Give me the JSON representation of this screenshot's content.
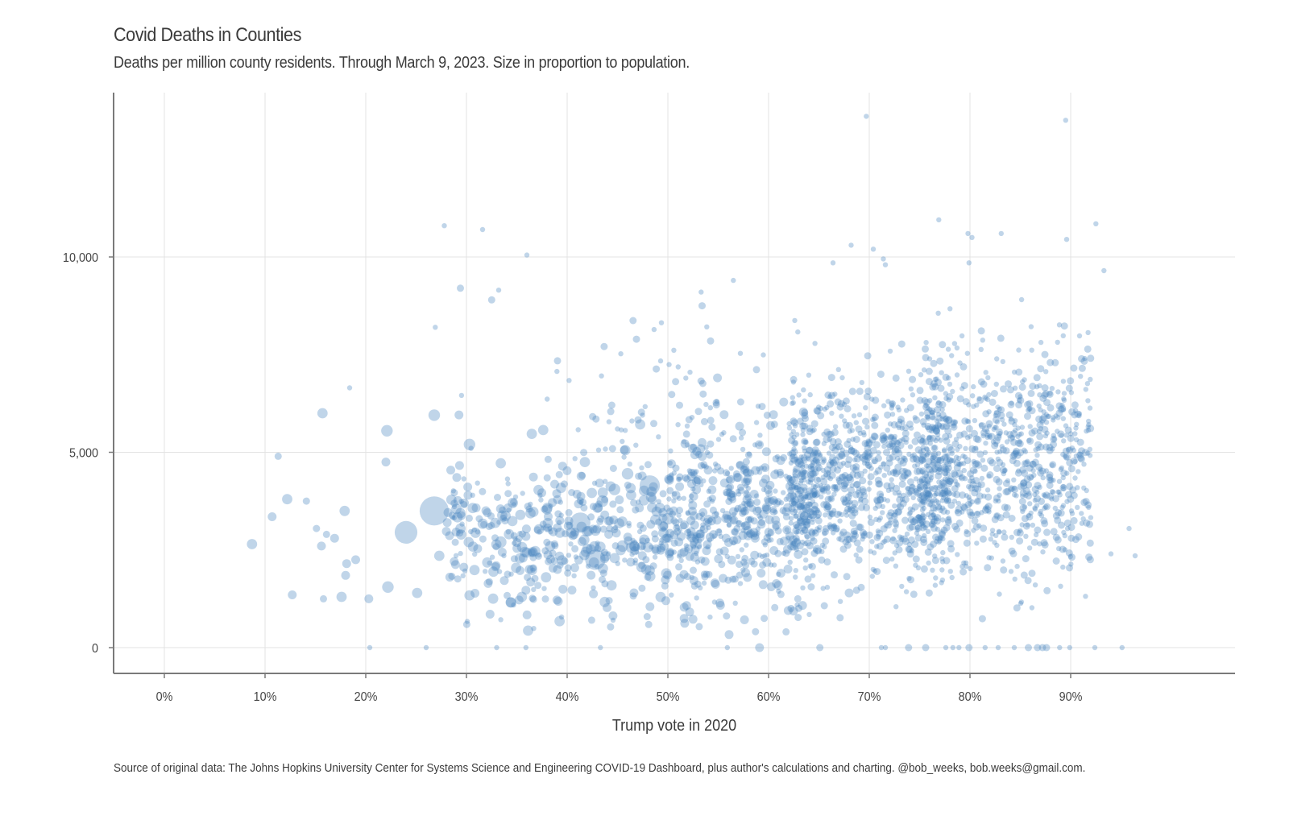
{
  "chart_data": {
    "type": "scatter",
    "title": "Covid Deaths in Counties",
    "subtitle": "Deaths per million county residents. Through March 9, 2023. Size in proportion to population.",
    "caption": "Source of original data: The Johns Hopkins University Center for Systems Science and Engineering COVID-19 Dashboard, plus author's calculations and charting. @bob_weeks, bob.weeks@gmail.com.",
    "xlabel": "Trump vote in 2020",
    "ylabel": "",
    "xlim": [
      -5,
      106
    ],
    "ylim": [
      -700,
      14200
    ],
    "x_ticks": [
      0,
      10,
      20,
      30,
      40,
      50,
      60,
      70,
      80,
      90
    ],
    "x_tick_labels": [
      "0%",
      "10%",
      "20%",
      "30%",
      "40%",
      "50%",
      "60%",
      "70%",
      "80%",
      "90%"
    ],
    "y_ticks": [
      0,
      5000,
      10000
    ],
    "y_tick_labels": [
      "0",
      "5,000",
      "10,000"
    ],
    "grid": true,
    "legend": "none",
    "point_color": "#4a86c0",
    "point_opacity": 0.35,
    "size_encoding": "population (relative, 1-10 scale)",
    "notable_points": [
      {
        "x": 26.8,
        "y": 3500,
        "size": 10
      },
      {
        "x": 24.0,
        "y": 2950,
        "size": 7
      },
      {
        "x": 22.1,
        "y": 5550,
        "size": 5
      },
      {
        "x": 26.8,
        "y": 5950,
        "size": 5
      },
      {
        "x": 30.3,
        "y": 5200,
        "size": 5
      },
      {
        "x": 15.7,
        "y": 6000,
        "size": 4
      },
      {
        "x": 12.2,
        "y": 3800,
        "size": 4
      },
      {
        "x": 17.9,
        "y": 3500,
        "size": 4
      },
      {
        "x": 8.7,
        "y": 2650,
        "size": 4
      },
      {
        "x": 22.2,
        "y": 1550,
        "size": 5
      },
      {
        "x": 33.4,
        "y": 2700,
        "size": 5
      },
      {
        "x": 46.0,
        "y": 4450,
        "size": 5
      },
      {
        "x": 48.2,
        "y": 4150,
        "size": 6
      },
      {
        "x": 43.5,
        "y": 3750,
        "size": 5
      },
      {
        "x": 44.7,
        "y": 4050,
        "size": 5
      },
      {
        "x": 35.8,
        "y": 2450,
        "size": 4
      },
      {
        "x": 41.3,
        "y": 3200,
        "size": 6
      },
      {
        "x": 42.8,
        "y": 2250,
        "size": 6
      },
      {
        "x": 27.3,
        "y": 2350,
        "size": 4
      },
      {
        "x": 25.1,
        "y": 1400,
        "size": 4
      },
      {
        "x": 17.6,
        "y": 1300,
        "size": 4
      },
      {
        "x": 12.7,
        "y": 1350,
        "size": 3
      },
      {
        "x": 18.0,
        "y": 1850,
        "size": 3
      },
      {
        "x": 18.1,
        "y": 2150,
        "size": 3
      },
      {
        "x": 19.0,
        "y": 2250,
        "size": 3
      },
      {
        "x": 16.9,
        "y": 2800,
        "size": 3
      },
      {
        "x": 15.6,
        "y": 2600,
        "size": 3
      },
      {
        "x": 22.0,
        "y": 4750,
        "size": 3
      },
      {
        "x": 10.7,
        "y": 3350,
        "size": 3
      },
      {
        "x": 16.1,
        "y": 2900,
        "size": 2
      },
      {
        "x": 14.1,
        "y": 3750,
        "size": 2
      },
      {
        "x": 15.1,
        "y": 3050,
        "size": 2
      },
      {
        "x": 15.8,
        "y": 1250,
        "size": 2
      },
      {
        "x": 20.3,
        "y": 1250,
        "size": 3
      },
      {
        "x": 37.9,
        "y": 1800,
        "size": 4
      },
      {
        "x": 35.5,
        "y": 1300,
        "size": 4
      },
      {
        "x": 29.8,
        "y": 3700,
        "size": 3
      },
      {
        "x": 45.5,
        "y": 2600,
        "size": 5
      },
      {
        "x": 50.0,
        "y": 3300,
        "size": 5
      },
      {
        "x": 49.5,
        "y": 3100,
        "size": 4
      },
      {
        "x": 53.4,
        "y": 5250,
        "size": 3
      },
      {
        "x": 68.0,
        "y": 1400,
        "size": 3
      },
      {
        "x": 62.9,
        "y": 1250,
        "size": 2
      },
      {
        "x": 27.8,
        "y": 10800,
        "size": 1
      },
      {
        "x": 31.6,
        "y": 10700,
        "size": 1
      },
      {
        "x": 36.0,
        "y": 10050,
        "size": 1
      },
      {
        "x": 69.7,
        "y": 13600,
        "size": 1
      },
      {
        "x": 89.5,
        "y": 13500,
        "size": 1
      },
      {
        "x": 76.9,
        "y": 10950,
        "size": 1
      },
      {
        "x": 92.5,
        "y": 10850,
        "size": 1
      },
      {
        "x": 79.8,
        "y": 10600,
        "size": 1
      },
      {
        "x": 83.1,
        "y": 10600,
        "size": 1
      },
      {
        "x": 80.2,
        "y": 10500,
        "size": 1
      },
      {
        "x": 89.6,
        "y": 10450,
        "size": 1
      },
      {
        "x": 68.2,
        "y": 10300,
        "size": 1
      },
      {
        "x": 70.4,
        "y": 10200,
        "size": 1
      },
      {
        "x": 71.4,
        "y": 9950,
        "size": 1
      },
      {
        "x": 66.4,
        "y": 9850,
        "size": 1
      },
      {
        "x": 79.9,
        "y": 9850,
        "size": 1
      },
      {
        "x": 71.6,
        "y": 9800,
        "size": 1
      },
      {
        "x": 93.3,
        "y": 9650,
        "size": 1
      },
      {
        "x": 29.4,
        "y": 9200,
        "size": 2
      },
      {
        "x": 33.2,
        "y": 9150,
        "size": 1
      },
      {
        "x": 32.5,
        "y": 8900,
        "size": 2
      },
      {
        "x": 56.5,
        "y": 9400,
        "size": 1
      },
      {
        "x": 53.3,
        "y": 9100,
        "size": 1
      },
      {
        "x": 53.4,
        "y": 8750,
        "size": 2
      },
      {
        "x": 26.9,
        "y": 8200,
        "size": 1
      },
      {
        "x": 18.4,
        "y": 6650,
        "size": 1
      },
      {
        "x": 11.3,
        "y": 4900,
        "size": 2
      },
      {
        "x": 96.4,
        "y": 2350,
        "size": 1
      },
      {
        "x": 95.8,
        "y": 3050,
        "size": 1
      },
      {
        "x": 94.0,
        "y": 2400,
        "size": 1
      },
      {
        "x": 20.4,
        "y": 0,
        "size": 1
      },
      {
        "x": 26.0,
        "y": 0,
        "size": 1
      },
      {
        "x": 33.0,
        "y": 0,
        "size": 1
      },
      {
        "x": 35.9,
        "y": 0,
        "size": 1
      },
      {
        "x": 43.3,
        "y": 0,
        "size": 1
      },
      {
        "x": 55.9,
        "y": 0,
        "size": 1
      },
      {
        "x": 59.1,
        "y": 0,
        "size": 3
      },
      {
        "x": 65.1,
        "y": 0,
        "size": 2
      },
      {
        "x": 71.2,
        "y": 0,
        "size": 1
      },
      {
        "x": 71.6,
        "y": 0,
        "size": 1
      },
      {
        "x": 73.9,
        "y": 0,
        "size": 2
      },
      {
        "x": 75.6,
        "y": 0,
        "size": 2
      },
      {
        "x": 77.6,
        "y": 0,
        "size": 1
      },
      {
        "x": 78.3,
        "y": 0,
        "size": 1
      },
      {
        "x": 78.9,
        "y": 0,
        "size": 1
      },
      {
        "x": 79.9,
        "y": 0,
        "size": 2
      },
      {
        "x": 81.5,
        "y": 0,
        "size": 1
      },
      {
        "x": 82.8,
        "y": 0,
        "size": 1
      },
      {
        "x": 84.4,
        "y": 0,
        "size": 1
      },
      {
        "x": 85.8,
        "y": 0,
        "size": 2
      },
      {
        "x": 86.7,
        "y": 0,
        "size": 2
      },
      {
        "x": 87.2,
        "y": 0,
        "size": 2
      },
      {
        "x": 87.6,
        "y": 0,
        "size": 2
      },
      {
        "x": 88.9,
        "y": 0,
        "size": 1
      },
      {
        "x": 89.9,
        "y": 0,
        "size": 1
      },
      {
        "x": 92.4,
        "y": 0,
        "size": 1
      },
      {
        "x": 95.1,
        "y": 0,
        "size": 1
      }
    ],
    "cloud_clusters": [
      {
        "x_range": [
          28,
          50
        ],
        "y_mean": 2900,
        "y_sd": 1000,
        "count": 420,
        "size_range": [
          1,
          4
        ],
        "seed": 11
      },
      {
        "x_range": [
          50,
          65
        ],
        "y_mean": 3300,
        "y_sd": 1150,
        "count": 520,
        "size_range": [
          1,
          3
        ],
        "seed": 23
      },
      {
        "x_range": [
          62,
          78
        ],
        "y_mean": 4300,
        "y_sd": 1250,
        "count": 900,
        "size_range": [
          1,
          2
        ],
        "seed": 37
      },
      {
        "x_range": [
          75,
          92
        ],
        "y_mean": 4700,
        "y_sd": 1450,
        "count": 800,
        "size_range": [
          1,
          2
        ],
        "seed": 53
      },
      {
        "x_range": [
          38,
          60
        ],
        "y_mean": 5900,
        "y_sd": 1100,
        "count": 90,
        "size_range": [
          1,
          2
        ],
        "seed": 71
      }
    ]
  }
}
